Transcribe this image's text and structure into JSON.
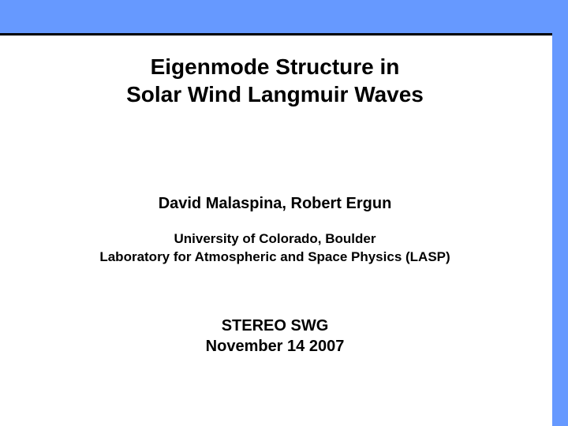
{
  "slide": {
    "title_line1": "Eigenmode Structure in",
    "title_line2": "Solar Wind Langmuir Waves",
    "authors": "David Malaspina, Robert Ergun",
    "affiliation_line1": "University of Colorado, Boulder",
    "affiliation_line2": "Laboratory for Atmospheric and Space Physics (LASP)",
    "meeting_line1": "STEREO SWG",
    "meeting_line2": "November 14 2007"
  },
  "style": {
    "accent_color": "#6699ff",
    "border_color": "#000000",
    "background_color": "#ffffff",
    "text_color": "#000000",
    "title_fontsize": 28,
    "authors_fontsize": 20,
    "affiliation_fontsize": 17,
    "meeting_fontsize": 20,
    "top_bar_height": 42,
    "right_column_width": 20,
    "border_width": 3,
    "slide_width": 720,
    "slide_height": 540
  }
}
